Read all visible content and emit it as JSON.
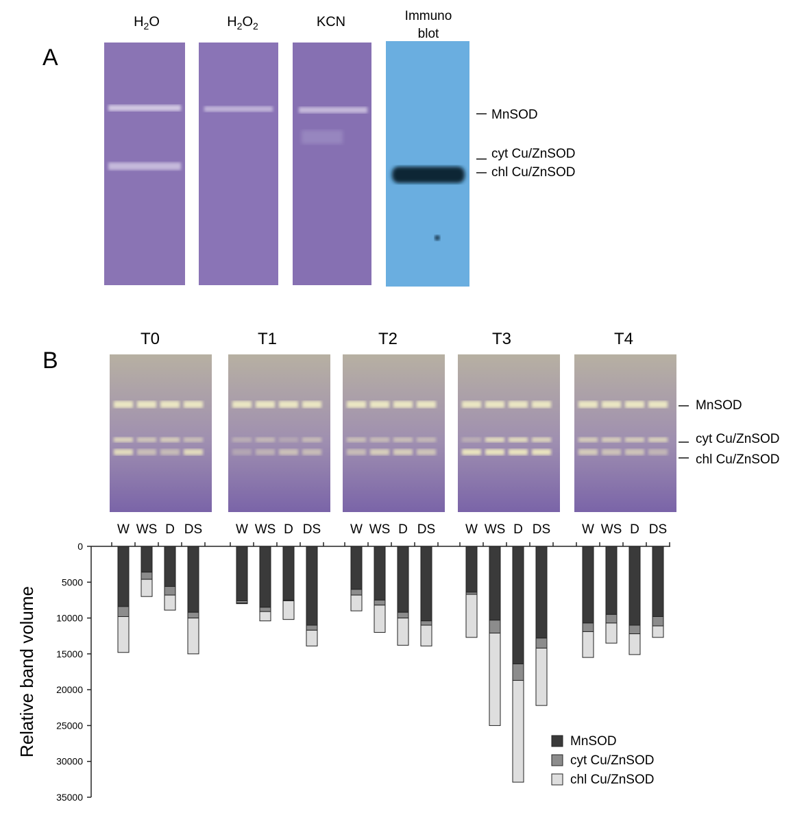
{
  "panel_a": {
    "label": "A",
    "lanes": [
      {
        "text": "H",
        "sub": "2",
        "text2": "O",
        "text3": "",
        "sub2": "",
        "color": "#8a74b4"
      },
      {
        "text": "H",
        "sub": "2",
        "text2": "O",
        "text3": "",
        "sub2": "2",
        "color": "#8a74b6"
      },
      {
        "text": "KCN",
        "sub": "",
        "text2": "",
        "text3": "",
        "sub2": "",
        "color": "#8670b2"
      },
      {
        "text": "Immuno",
        "sub": "",
        "text2": "",
        "text3": "blot",
        "sub2": "",
        "color": "#6aaee0"
      }
    ],
    "band_labels": [
      "MnSOD",
      "cyt Cu/ZnSOD",
      "chl Cu/ZnSOD"
    ]
  },
  "panel_b": {
    "label": "B",
    "gel_titles": [
      "T0",
      "T1",
      "T2",
      "T3",
      "T4"
    ],
    "lane_labels": [
      "W",
      "WS",
      "D",
      "DS"
    ],
    "band_labels": [
      "MnSOD",
      "cyt Cu/ZnSOD",
      "chl Cu/ZnSOD"
    ]
  },
  "chart_data": {
    "type": "bar",
    "stacked": true,
    "orientation": "inverted",
    "ylabel": "Relative band volume",
    "ylim": [
      0,
      35000
    ],
    "yticks": [
      0,
      5000,
      10000,
      15000,
      20000,
      25000,
      30000,
      35000
    ],
    "groups": [
      "T0",
      "T1",
      "T2",
      "T3",
      "T4"
    ],
    "categories": [
      "W",
      "WS",
      "D",
      "DS"
    ],
    "series": [
      {
        "name": "MnSOD",
        "color": "#3a3a3a",
        "values": [
          [
            8400,
            3600,
            5600,
            9200
          ],
          [
            7600,
            8500,
            7500,
            11000
          ],
          [
            6000,
            7500,
            9200,
            10400
          ],
          [
            6400,
            10300,
            16400,
            12800
          ],
          [
            10700,
            9500,
            11000,
            9800
          ]
        ]
      },
      {
        "name": "cyt Cu/ZnSOD",
        "color": "#8c8c8c",
        "values": [
          [
            1400,
            1000,
            1200,
            800
          ],
          [
            300,
            600,
            100,
            700
          ],
          [
            800,
            700,
            800,
            600
          ],
          [
            300,
            1800,
            2300,
            1400
          ],
          [
            1200,
            1200,
            1200,
            1300
          ]
        ]
      },
      {
        "name": "chl Cu/ZnSOD",
        "color": "#dedede",
        "values": [
          [
            5000,
            2400,
            2100,
            5000
          ],
          [
            100,
            1300,
            2600,
            2200
          ],
          [
            2200,
            3800,
            3800,
            2900
          ],
          [
            6000,
            12900,
            14200,
            8000
          ],
          [
            3600,
            2800,
            2900,
            1600
          ]
        ]
      }
    ],
    "legend_position": "bottom-right"
  }
}
